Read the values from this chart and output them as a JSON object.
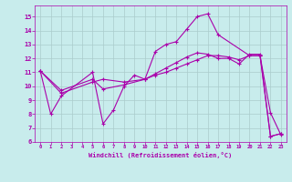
{
  "bg_color": "#c8ecec",
  "line_color": "#aa00aa",
  "grid_color": "#aacccc",
  "xlabel": "Windchill (Refroidissement éolien,°C)",
  "xlabel_color": "#aa00aa",
  "xlim": [
    -0.5,
    23.5
  ],
  "ylim": [
    6,
    15.8
  ],
  "yticks": [
    6,
    7,
    8,
    9,
    10,
    11,
    12,
    13,
    14,
    15
  ],
  "xticks": [
    0,
    1,
    2,
    3,
    4,
    5,
    6,
    7,
    8,
    9,
    10,
    11,
    12,
    13,
    14,
    15,
    16,
    17,
    18,
    19,
    20,
    21,
    22,
    23
  ],
  "series1_x": [
    0,
    1,
    2,
    5,
    6,
    7,
    8,
    9,
    10,
    11,
    12,
    13,
    14,
    15,
    16,
    17,
    20,
    21,
    22,
    23
  ],
  "series1_y": [
    11.1,
    8.0,
    9.3,
    11.0,
    7.3,
    8.3,
    10.0,
    10.8,
    10.5,
    12.5,
    13.0,
    13.2,
    14.1,
    15.0,
    15.2,
    13.7,
    12.2,
    12.2,
    8.1,
    6.5
  ],
  "series2_x": [
    0,
    2,
    5,
    6,
    8,
    10,
    11,
    12,
    13,
    14,
    15,
    16,
    17,
    18,
    19,
    20,
    21,
    22,
    23
  ],
  "series2_y": [
    11.1,
    9.5,
    10.3,
    10.5,
    10.3,
    10.5,
    10.8,
    11.0,
    11.3,
    11.6,
    11.9,
    12.2,
    12.2,
    12.1,
    11.9,
    12.2,
    12.2,
    6.4,
    6.6
  ],
  "series3_x": [
    0,
    2,
    5,
    6,
    8,
    10,
    11,
    12,
    13,
    14,
    15,
    16,
    17,
    18,
    19,
    20,
    21,
    22,
    23
  ],
  "series3_y": [
    11.1,
    9.7,
    10.5,
    9.8,
    10.1,
    10.5,
    10.9,
    11.3,
    11.7,
    12.1,
    12.4,
    12.3,
    12.0,
    12.0,
    11.6,
    12.3,
    12.3,
    6.4,
    6.6
  ]
}
